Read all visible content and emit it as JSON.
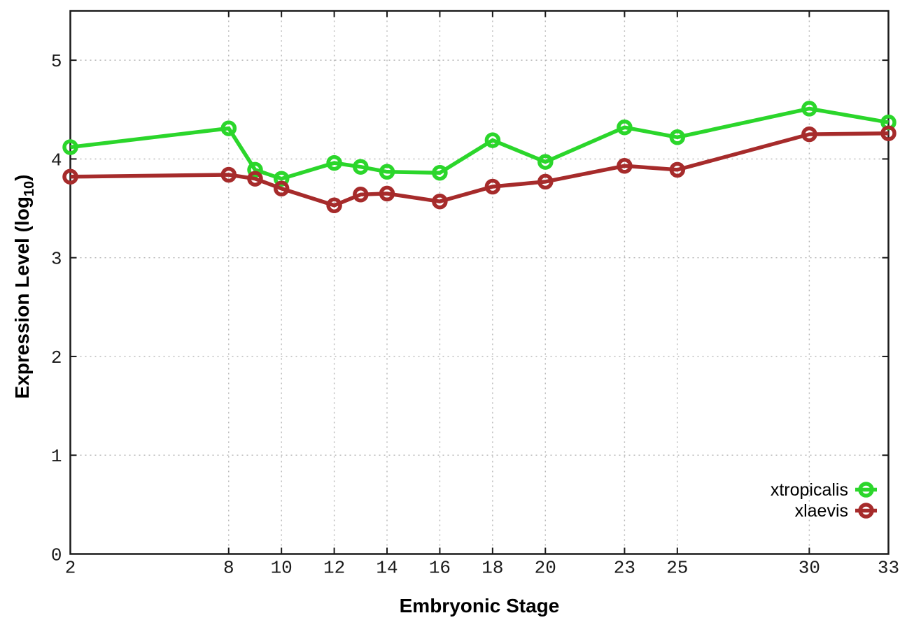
{
  "chart_data": {
    "type": "line",
    "title": "",
    "xlabel": "Embryonic Stage",
    "ylabel": "Expression Level (log10)",
    "ylabel_parts": {
      "pre": "Expression Level (log",
      "sub": "10",
      "post": ")"
    },
    "x": [
      2,
      8,
      9,
      10,
      12,
      13,
      14,
      16,
      18,
      20,
      23,
      25,
      30,
      33
    ],
    "x_ticks": [
      2,
      8,
      10,
      12,
      14,
      16,
      18,
      20,
      23,
      25,
      30,
      33
    ],
    "y_ticks": [
      0,
      1,
      2,
      3,
      4,
      5
    ],
    "xlim": [
      2,
      33
    ],
    "ylim": [
      0,
      5.5
    ],
    "grid": true,
    "background_color": "#ffffff",
    "axis_color": "#1a1a1a",
    "grid_color": "#b5b5b5",
    "legend_position": "inside-bottom-right",
    "series": [
      {
        "name": "xtropicalis",
        "color": "#2bd62b",
        "values": [
          4.12,
          4.31,
          3.89,
          3.8,
          3.96,
          3.92,
          3.87,
          3.86,
          4.19,
          3.97,
          4.32,
          4.22,
          4.51,
          4.37
        ]
      },
      {
        "name": "xlaevis",
        "color": "#a62b2b",
        "values": [
          3.82,
          3.84,
          3.8,
          3.7,
          3.53,
          3.64,
          3.65,
          3.57,
          3.72,
          3.77,
          3.93,
          3.89,
          4.25,
          4.26
        ]
      }
    ]
  }
}
